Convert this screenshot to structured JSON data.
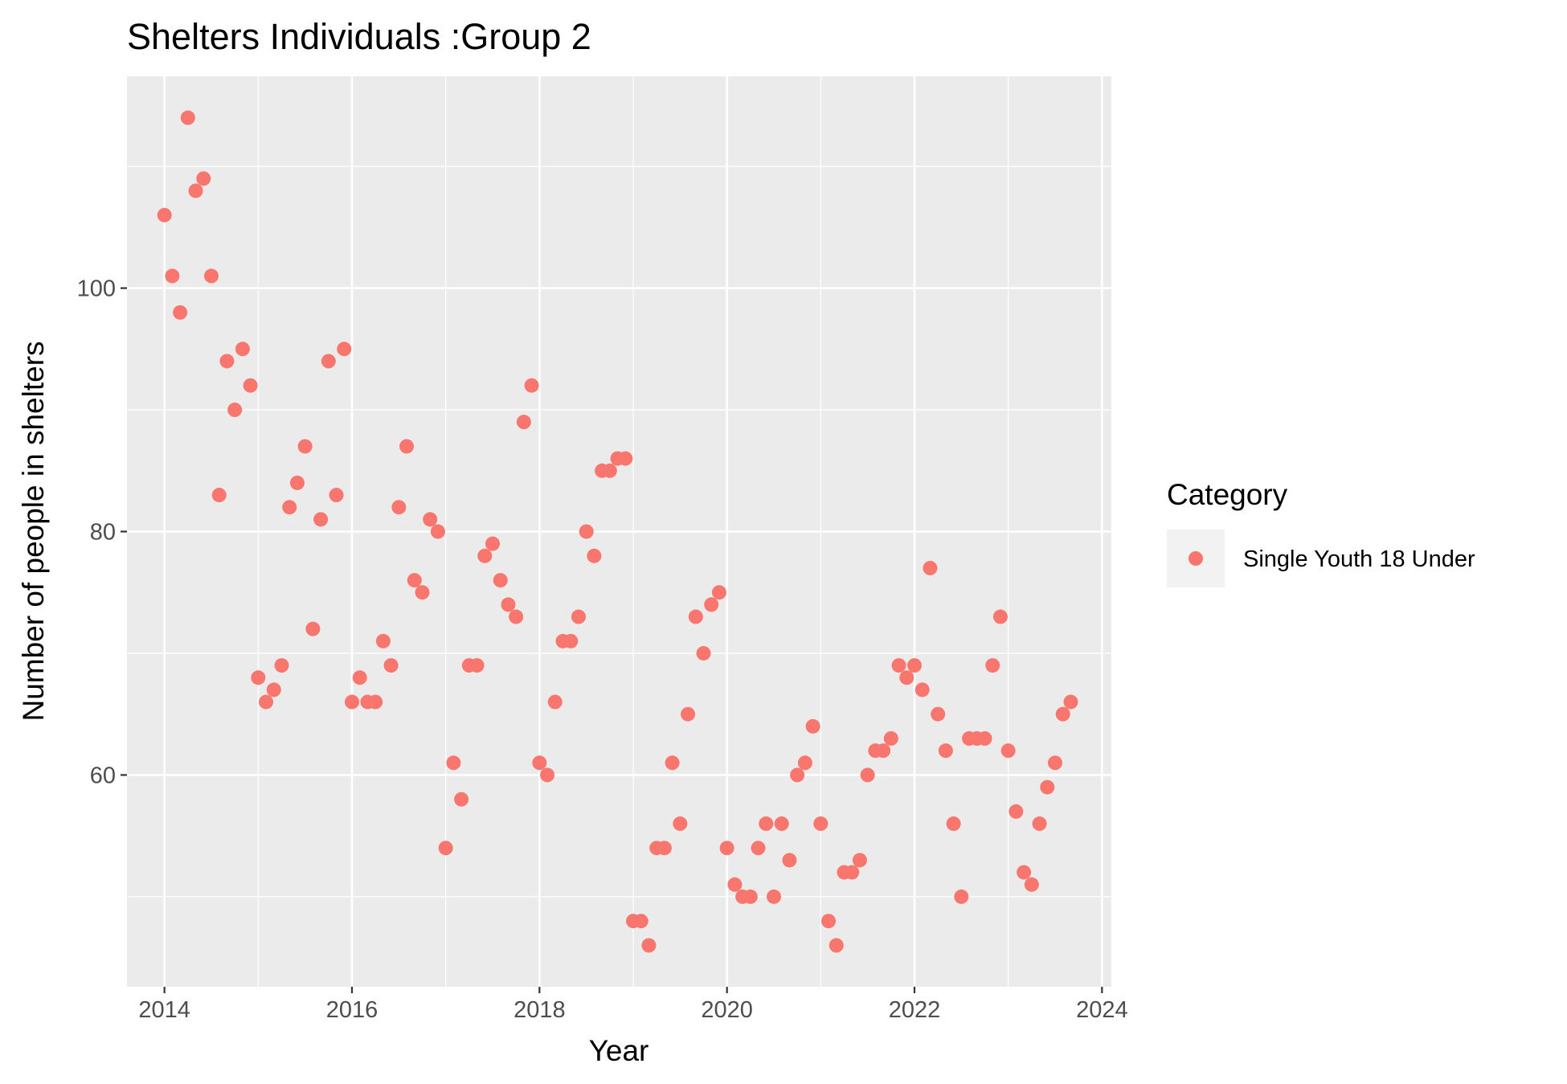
{
  "chart_data": {
    "type": "scatter",
    "title": "Shelters Individuals :Group 2",
    "xlabel": "Year",
    "ylabel": "Number of people in shelters",
    "x_ticks": [
      2014,
      2016,
      2018,
      2020,
      2022,
      2024
    ],
    "y_ticks": [
      60,
      80,
      100
    ],
    "xlim": [
      2013.6,
      2024.1
    ],
    "ylim": [
      42.6,
      117.4
    ],
    "grid": true,
    "legend": {
      "title": "Category",
      "position": "right",
      "entries": [
        "Single Youth 18 Under"
      ]
    },
    "series": [
      {
        "name": "Single Youth 18 Under",
        "color": "#F8766D",
        "points": [
          [
            "2014-01",
            106
          ],
          [
            "2014-02",
            101
          ],
          [
            "2014-03",
            98
          ],
          [
            "2014-04",
            114
          ],
          [
            "2014-05",
            108
          ],
          [
            "2014-06",
            109
          ],
          [
            "2014-07",
            101
          ],
          [
            "2014-08",
            83
          ],
          [
            "2014-09",
            94
          ],
          [
            "2014-10",
            90
          ],
          [
            "2014-11",
            95
          ],
          [
            "2014-12",
            92
          ],
          [
            "2015-01",
            68
          ],
          [
            "2015-02",
            66
          ],
          [
            "2015-03",
            67
          ],
          [
            "2015-04",
            69
          ],
          [
            "2015-05",
            82
          ],
          [
            "2015-06",
            84
          ],
          [
            "2015-07",
            87
          ],
          [
            "2015-08",
            72
          ],
          [
            "2015-09",
            81
          ],
          [
            "2015-10",
            94
          ],
          [
            "2015-11",
            83
          ],
          [
            "2015-12",
            95
          ],
          [
            "2016-01",
            66
          ],
          [
            "2016-02",
            68
          ],
          [
            "2016-03",
            66
          ],
          [
            "2016-04",
            66
          ],
          [
            "2016-05",
            71
          ],
          [
            "2016-06",
            69
          ],
          [
            "2016-07",
            82
          ],
          [
            "2016-08",
            87
          ],
          [
            "2016-09",
            76
          ],
          [
            "2016-10",
            75
          ],
          [
            "2016-11",
            81
          ],
          [
            "2016-12",
            80
          ],
          [
            "2017-01",
            54
          ],
          [
            "2017-02",
            61
          ],
          [
            "2017-03",
            58
          ],
          [
            "2017-04",
            69
          ],
          [
            "2017-05",
            69
          ],
          [
            "2017-06",
            78
          ],
          [
            "2017-07",
            79
          ],
          [
            "2017-08",
            76
          ],
          [
            "2017-09",
            74
          ],
          [
            "2017-10",
            73
          ],
          [
            "2017-11",
            89
          ],
          [
            "2017-12",
            92
          ],
          [
            "2018-01",
            61
          ],
          [
            "2018-02",
            60
          ],
          [
            "2018-03",
            66
          ],
          [
            "2018-04",
            71
          ],
          [
            "2018-05",
            71
          ],
          [
            "2018-06",
            73
          ],
          [
            "2018-07",
            80
          ],
          [
            "2018-08",
            78
          ],
          [
            "2018-09",
            85
          ],
          [
            "2018-10",
            85
          ],
          [
            "2018-11",
            86
          ],
          [
            "2018-12",
            86
          ],
          [
            "2019-01",
            48
          ],
          [
            "2019-02",
            48
          ],
          [
            "2019-03",
            46
          ],
          [
            "2019-04",
            54
          ],
          [
            "2019-05",
            54
          ],
          [
            "2019-06",
            61
          ],
          [
            "2019-07",
            56
          ],
          [
            "2019-08",
            65
          ],
          [
            "2019-09",
            73
          ],
          [
            "2019-10",
            70
          ],
          [
            "2019-11",
            74
          ],
          [
            "2019-12",
            75
          ],
          [
            "2020-01",
            54
          ],
          [
            "2020-02",
            51
          ],
          [
            "2020-03",
            50
          ],
          [
            "2020-04",
            50
          ],
          [
            "2020-05",
            54
          ],
          [
            "2020-06",
            56
          ],
          [
            "2020-07",
            50
          ],
          [
            "2020-08",
            56
          ],
          [
            "2020-09",
            53
          ],
          [
            "2020-10",
            60
          ],
          [
            "2020-11",
            61
          ],
          [
            "2020-12",
            64
          ],
          [
            "2021-01",
            56
          ],
          [
            "2021-02",
            48
          ],
          [
            "2021-03",
            46
          ],
          [
            "2021-04",
            52
          ],
          [
            "2021-05",
            52
          ],
          [
            "2021-06",
            53
          ],
          [
            "2021-07",
            60
          ],
          [
            "2021-08",
            62
          ],
          [
            "2021-09",
            62
          ],
          [
            "2021-10",
            63
          ],
          [
            "2021-11",
            69
          ],
          [
            "2021-12",
            68
          ],
          [
            "2022-01",
            69
          ],
          [
            "2022-02",
            67
          ],
          [
            "2022-03",
            77
          ],
          [
            "2022-04",
            65
          ],
          [
            "2022-05",
            62
          ],
          [
            "2022-06",
            56
          ],
          [
            "2022-07",
            50
          ],
          [
            "2022-08",
            63
          ],
          [
            "2022-09",
            63
          ],
          [
            "2022-10",
            63
          ],
          [
            "2022-11",
            69
          ],
          [
            "2022-12",
            73
          ],
          [
            "2023-01",
            62
          ],
          [
            "2023-02",
            57
          ],
          [
            "2023-03",
            52
          ],
          [
            "2023-04",
            51
          ],
          [
            "2023-05",
            56
          ],
          [
            "2023-06",
            59
          ],
          [
            "2023-07",
            61
          ],
          [
            "2023-08",
            65
          ],
          [
            "2023-09",
            66
          ]
        ]
      }
    ]
  }
}
